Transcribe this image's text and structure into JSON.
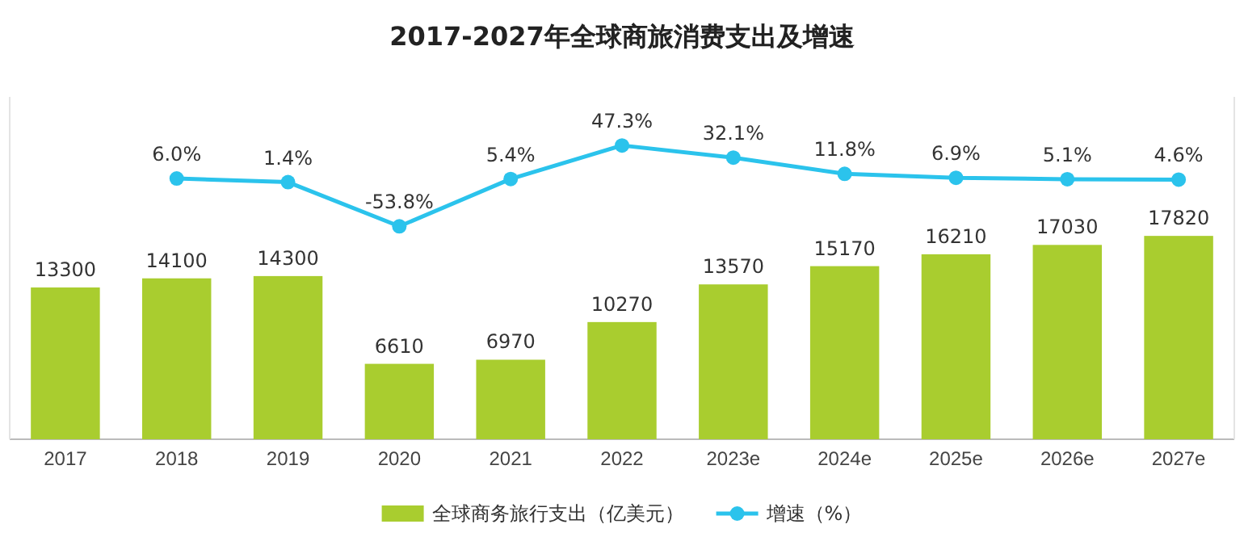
{
  "chart_data": {
    "type": "bar",
    "title": "2017-2027年全球商旅消费支出及增速",
    "categories": [
      "2017",
      "2018",
      "2019",
      "2020",
      "2021",
      "2022",
      "2023e",
      "2024e",
      "2025e",
      "2026e",
      "2027e"
    ],
    "series": [
      {
        "name": "全球商务旅行支出（亿美元）",
        "color": "#a9cd2f",
        "values": [
          13300,
          14100,
          14300,
          6610,
          6970,
          10270,
          13570,
          15170,
          16210,
          17030,
          17820
        ]
      },
      {
        "name": "增速（%）",
        "type": "line",
        "axis": "y2",
        "color": "#2bc3ec",
        "marker": "circle",
        "value_labels": [
          null,
          "6.0%",
          "1.4%",
          "-53.8%",
          "5.4%",
          "47.3%",
          "32.1%",
          "11.8%",
          "6.9%",
          "5.1%",
          "4.6%"
        ],
        "values": [
          null,
          6.0,
          1.4,
          -53.8,
          5.4,
          47.3,
          32.1,
          11.8,
          6.9,
          5.1,
          4.6
        ]
      }
    ],
    "ylim": [
      0,
      30000
    ],
    "y2lim": [
      -320,
      108
    ],
    "tick_labels": "x",
    "data_labels": true,
    "legend": "bottom"
  }
}
